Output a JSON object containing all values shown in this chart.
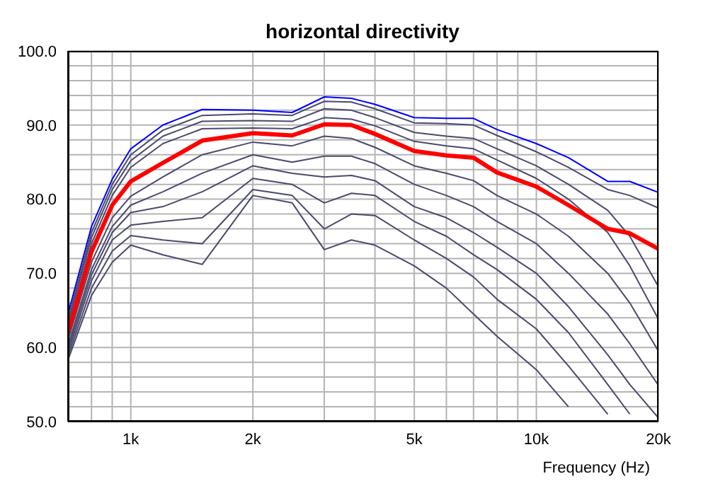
{
  "chart_data": {
    "type": "line",
    "title": "horizontal directivity",
    "xlabel": "Frequency (Hz)",
    "log": "x",
    "grid": true,
    "legend": false,
    "marker": "none",
    "x": [
      700,
      800,
      900,
      1000,
      1200,
      1500,
      2000,
      2500,
      3000,
      3500,
      4000,
      5000,
      6000,
      7000,
      8000,
      10000,
      12000,
      15000,
      17000,
      20000
    ],
    "xlim": [
      700,
      20000
    ],
    "xticks": [
      {
        "value": 800,
        "label": null
      },
      {
        "value": 900,
        "label": null
      },
      {
        "value": 1000,
        "label": "1k"
      },
      {
        "value": 2000,
        "label": "2k"
      },
      {
        "value": 3000,
        "label": null
      },
      {
        "value": 4000,
        "label": null
      },
      {
        "value": 5000,
        "label": "5k"
      },
      {
        "value": 6000,
        "label": null
      },
      {
        "value": 7000,
        "label": null
      },
      {
        "value": 8000,
        "label": null
      },
      {
        "value": 9000,
        "label": null
      },
      {
        "value": 10000,
        "label": "10k"
      },
      {
        "value": 20000,
        "label": "20k"
      }
    ],
    "ylim": [
      50,
      100
    ],
    "yticks": [
      {
        "value": 50,
        "label": "50.0"
      },
      {
        "value": 52,
        "label": null
      },
      {
        "value": 54,
        "label": null
      },
      {
        "value": 56,
        "label": null
      },
      {
        "value": 58,
        "label": null
      },
      {
        "value": 60,
        "label": "60.0"
      },
      {
        "value": 62,
        "label": null
      },
      {
        "value": 64,
        "label": null
      },
      {
        "value": 66,
        "label": null
      },
      {
        "value": 68,
        "label": null
      },
      {
        "value": 70,
        "label": "70.0"
      },
      {
        "value": 72,
        "label": null
      },
      {
        "value": 74,
        "label": null
      },
      {
        "value": 76,
        "label": null
      },
      {
        "value": 78,
        "label": null
      },
      {
        "value": 80,
        "label": "80.0"
      },
      {
        "value": 82,
        "label": null
      },
      {
        "value": 84,
        "label": null
      },
      {
        "value": 86,
        "label": null
      },
      {
        "value": 88,
        "label": null
      },
      {
        "value": 90,
        "label": "90.0"
      },
      {
        "value": 92,
        "label": null
      },
      {
        "value": 94,
        "label": null
      },
      {
        "value": 96,
        "label": null
      },
      {
        "value": 98,
        "label": null
      },
      {
        "value": 100,
        "label": "100.0"
      }
    ],
    "series": [
      {
        "color": "#0000ff",
        "values": [
          64.5,
          76.3,
          82.7,
          86.8,
          90.0,
          92.1,
          92.0,
          91.7,
          93.8,
          93.6,
          92.8,
          91.0,
          90.9,
          90.9,
          89.4,
          87.5,
          85.6,
          82.4,
          82.4,
          80.9
        ]
      },
      {
        "color": "#4a4a6e",
        "values": [
          63.8,
          75.5,
          82,
          86,
          89.3,
          91.3,
          91.5,
          91.3,
          93.2,
          93.1,
          92.2,
          90.3,
          90.2,
          90.0,
          88.6,
          86.4,
          84.3,
          81.3,
          80.5,
          78.8
        ]
      },
      {
        "color": "#4a4a6e",
        "values": [
          63.2,
          74.8,
          81.3,
          85.2,
          88.5,
          90.5,
          90.6,
          90.5,
          92.2,
          92.0,
          91.0,
          89.0,
          88.5,
          88.2,
          86.8,
          84.5,
          82.0,
          78.5,
          75.0,
          68.2
        ]
      },
      {
        "color": "#4a4a6e",
        "values": [
          62.6,
          74.0,
          80.5,
          84.3,
          87.5,
          89.5,
          89.6,
          89.5,
          91.0,
          90.8,
          89.9,
          87.8,
          87.2,
          86.8,
          85.3,
          82.8,
          80.0,
          75.5,
          71.0,
          63.8
        ]
      },
      {
        "color": "#4a4a6e",
        "values": [
          61.0,
          71.5,
          77.5,
          80.4,
          83.0,
          86.0,
          87.7,
          87.2,
          88.5,
          88.2,
          87.0,
          84.5,
          83.5,
          82.5,
          80.5,
          78.0,
          75.0,
          70.0,
          66.0,
          59.5
        ]
      },
      {
        "color": "#4a4a6e",
        "values": [
          60.3,
          70.5,
          76.3,
          79.2,
          81.0,
          83.5,
          86.0,
          85.0,
          85.8,
          85.8,
          84.8,
          82.0,
          80.5,
          79.0,
          77.0,
          74.0,
          70.0,
          64.5,
          60.5,
          54.9
        ]
      },
      {
        "color": "#4a4a6e",
        "values": [
          59.8,
          69.8,
          75.5,
          78.2,
          79.0,
          81.0,
          84.5,
          83.5,
          83.0,
          83.2,
          82.5,
          79.0,
          77.5,
          75.5,
          73.5,
          70.0,
          65.5,
          59.0,
          55.0,
          50.5
        ]
      },
      {
        "color": "#4a4a6e",
        "values": [
          59.3,
          69.0,
          74.5,
          76.5,
          77.0,
          77.5,
          82.8,
          82.0,
          79.5,
          80.8,
          80.5,
          77.0,
          75.0,
          72.5,
          70.5,
          66.5,
          62.0,
          55.0,
          51.0,
          null
        ]
      },
      {
        "color": "#4a4a6e",
        "values": [
          58.8,
          68.0,
          73.0,
          75.1,
          74.5,
          74.0,
          81.3,
          80.5,
          76.0,
          78.0,
          77.8,
          74.5,
          72.0,
          69.5,
          66.5,
          62.5,
          57.5,
          51.0,
          null,
          null
        ]
      },
      {
        "color": "#4a4a6e",
        "values": [
          58.3,
          67.0,
          71.5,
          73.8,
          72.5,
          71.2,
          80.5,
          79.5,
          73.2,
          74.5,
          73.8,
          71.0,
          68.0,
          64.5,
          61.5,
          57.0,
          52.0,
          null,
          null,
          null
        ]
      },
      {
        "color": "#ff0000",
        "values": [
          62.0,
          72.9,
          79.2,
          82.4,
          84.9,
          87.9,
          88.9,
          88.6,
          90.1,
          90.0,
          88.8,
          86.5,
          85.9,
          85.6,
          83.6,
          81.7,
          79.2,
          76.0,
          75.4,
          73.3
        ]
      }
    ]
  }
}
